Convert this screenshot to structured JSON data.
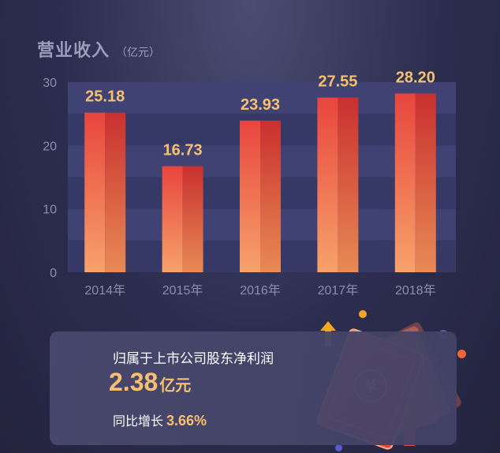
{
  "header": {
    "title": "营业收入",
    "unit": "（亿元）"
  },
  "chart_data": {
    "type": "bar",
    "title": "营业收入",
    "ylabel": "",
    "xlabel": "",
    "categories": [
      "2014年",
      "2015年",
      "2016年",
      "2017年",
      "2018年"
    ],
    "values": [
      25.18,
      16.73,
      23.93,
      27.55,
      28.2
    ],
    "value_labels": [
      "25.18",
      "16.73",
      "23.93",
      "27.55",
      "28.20"
    ],
    "ylim": [
      0,
      30
    ],
    "yticks": [
      0,
      10,
      20,
      30
    ],
    "grid": true,
    "bar_color_top": "#e8453d",
    "bar_color_bottom": "#f7a26b"
  },
  "summary": {
    "label": "归属于上市公司股东净利润",
    "value": "2.38",
    "value_unit": "亿元",
    "growth_label": "同比增长",
    "growth_value": "3.66%"
  },
  "colors": {
    "accent": "#f6c070",
    "arrow": "#f5a623"
  }
}
